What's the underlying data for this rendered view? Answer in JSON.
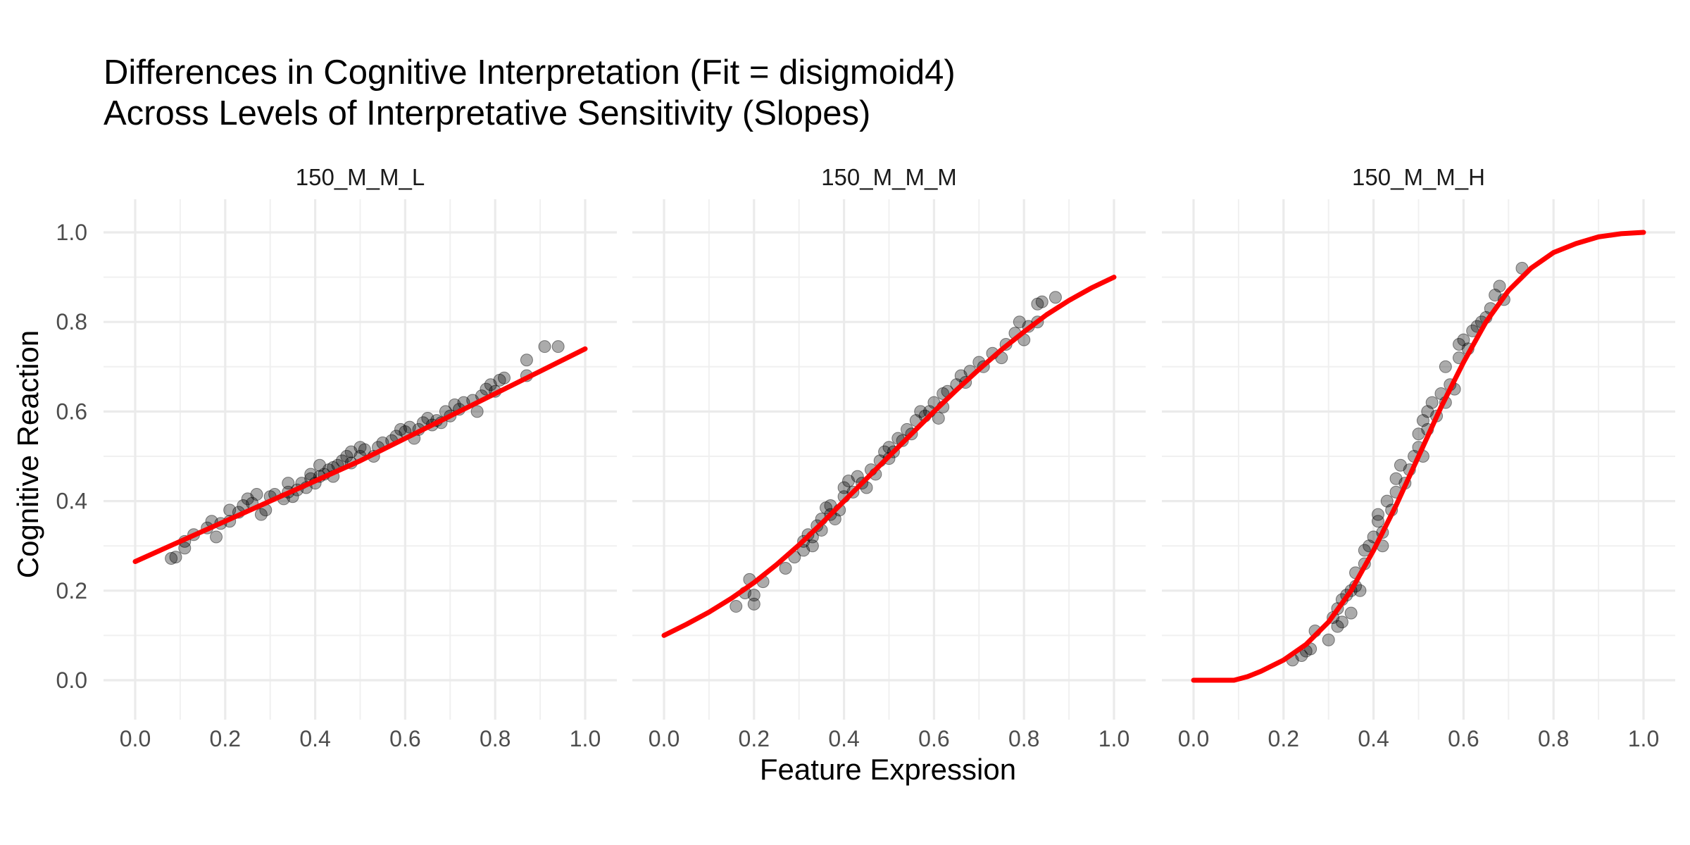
{
  "title_lines": [
    "Differences in Cognitive Interpretation (Fit = disigmoid4)",
    "Across Levels of Interpretative Sensitivity (Slopes)"
  ],
  "chart_data": {
    "type": "scatter",
    "title": "Differences in Cognitive Interpretation (Fit = disigmoid4) Across Levels of Interpretative Sensitivity (Slopes)",
    "xlabel": "Feature Expression",
    "ylabel": "Cognitive Reaction",
    "xlim": [
      0,
      1
    ],
    "ylim": [
      0,
      1
    ],
    "x_ticks": [
      "0.0",
      "0.2",
      "0.4",
      "0.6",
      "0.8",
      "1.0"
    ],
    "y_ticks": [
      "0.0",
      "0.2",
      "0.4",
      "0.6",
      "0.8",
      "1.0"
    ],
    "grid": true,
    "point_color": "#000000",
    "fit_color": "#ff0000",
    "panels": [
      {
        "label": "150_M_M_L",
        "points": [
          [
            0.08,
            0.272
          ],
          [
            0.09,
            0.275
          ],
          [
            0.11,
            0.295
          ],
          [
            0.11,
            0.31
          ],
          [
            0.13,
            0.325
          ],
          [
            0.16,
            0.34
          ],
          [
            0.17,
            0.355
          ],
          [
            0.18,
            0.32
          ],
          [
            0.19,
            0.35
          ],
          [
            0.21,
            0.355
          ],
          [
            0.21,
            0.38
          ],
          [
            0.23,
            0.375
          ],
          [
            0.24,
            0.39
          ],
          [
            0.25,
            0.405
          ],
          [
            0.26,
            0.395
          ],
          [
            0.27,
            0.415
          ],
          [
            0.28,
            0.37
          ],
          [
            0.29,
            0.38
          ],
          [
            0.3,
            0.41
          ],
          [
            0.31,
            0.415
          ],
          [
            0.33,
            0.405
          ],
          [
            0.34,
            0.42
          ],
          [
            0.34,
            0.44
          ],
          [
            0.35,
            0.41
          ],
          [
            0.36,
            0.425
          ],
          [
            0.37,
            0.44
          ],
          [
            0.38,
            0.43
          ],
          [
            0.39,
            0.45
          ],
          [
            0.39,
            0.46
          ],
          [
            0.4,
            0.44
          ],
          [
            0.41,
            0.455
          ],
          [
            0.41,
            0.48
          ],
          [
            0.42,
            0.46
          ],
          [
            0.43,
            0.47
          ],
          [
            0.44,
            0.475
          ],
          [
            0.44,
            0.455
          ],
          [
            0.45,
            0.48
          ],
          [
            0.46,
            0.49
          ],
          [
            0.47,
            0.5
          ],
          [
            0.48,
            0.485
          ],
          [
            0.48,
            0.51
          ],
          [
            0.5,
            0.5
          ],
          [
            0.5,
            0.52
          ],
          [
            0.51,
            0.515
          ],
          [
            0.53,
            0.5
          ],
          [
            0.54,
            0.52
          ],
          [
            0.55,
            0.53
          ],
          [
            0.57,
            0.535
          ],
          [
            0.58,
            0.545
          ],
          [
            0.59,
            0.56
          ],
          [
            0.6,
            0.555
          ],
          [
            0.61,
            0.565
          ],
          [
            0.62,
            0.54
          ],
          [
            0.63,
            0.56
          ],
          [
            0.64,
            0.575
          ],
          [
            0.65,
            0.585
          ],
          [
            0.66,
            0.57
          ],
          [
            0.67,
            0.58
          ],
          [
            0.68,
            0.575
          ],
          [
            0.69,
            0.6
          ],
          [
            0.7,
            0.59
          ],
          [
            0.71,
            0.615
          ],
          [
            0.72,
            0.605
          ],
          [
            0.73,
            0.62
          ],
          [
            0.75,
            0.625
          ],
          [
            0.76,
            0.6
          ],
          [
            0.77,
            0.635
          ],
          [
            0.78,
            0.65
          ],
          [
            0.79,
            0.66
          ],
          [
            0.8,
            0.645
          ],
          [
            0.81,
            0.67
          ],
          [
            0.82,
            0.675
          ],
          [
            0.87,
            0.715
          ],
          [
            0.87,
            0.68
          ],
          [
            0.91,
            0.745
          ],
          [
            0.94,
            0.745
          ]
        ],
        "fit": [
          [
            0,
            0.265
          ],
          [
            0.1,
            0.31
          ],
          [
            0.2,
            0.355
          ],
          [
            0.3,
            0.4
          ],
          [
            0.4,
            0.445
          ],
          [
            0.5,
            0.49
          ],
          [
            0.6,
            0.54
          ],
          [
            0.7,
            0.59
          ],
          [
            0.8,
            0.64
          ],
          [
            0.9,
            0.69
          ],
          [
            1,
            0.74
          ]
        ]
      },
      {
        "label": "150_M_M_M",
        "points": [
          [
            0.16,
            0.165
          ],
          [
            0.18,
            0.195
          ],
          [
            0.19,
            0.225
          ],
          [
            0.2,
            0.17
          ],
          [
            0.2,
            0.19
          ],
          [
            0.22,
            0.22
          ],
          [
            0.27,
            0.25
          ],
          [
            0.29,
            0.275
          ],
          [
            0.31,
            0.29
          ],
          [
            0.31,
            0.31
          ],
          [
            0.32,
            0.325
          ],
          [
            0.33,
            0.32
          ],
          [
            0.33,
            0.3
          ],
          [
            0.34,
            0.345
          ],
          [
            0.35,
            0.36
          ],
          [
            0.35,
            0.335
          ],
          [
            0.36,
            0.385
          ],
          [
            0.37,
            0.37
          ],
          [
            0.37,
            0.39
          ],
          [
            0.38,
            0.36
          ],
          [
            0.39,
            0.38
          ],
          [
            0.4,
            0.41
          ],
          [
            0.4,
            0.43
          ],
          [
            0.41,
            0.445
          ],
          [
            0.42,
            0.42
          ],
          [
            0.43,
            0.455
          ],
          [
            0.44,
            0.44
          ],
          [
            0.45,
            0.43
          ],
          [
            0.46,
            0.47
          ],
          [
            0.47,
            0.46
          ],
          [
            0.48,
            0.49
          ],
          [
            0.49,
            0.51
          ],
          [
            0.5,
            0.495
          ],
          [
            0.5,
            0.52
          ],
          [
            0.51,
            0.51
          ],
          [
            0.52,
            0.54
          ],
          [
            0.53,
            0.535
          ],
          [
            0.54,
            0.56
          ],
          [
            0.55,
            0.55
          ],
          [
            0.56,
            0.58
          ],
          [
            0.57,
            0.6
          ],
          [
            0.58,
            0.59
          ],
          [
            0.59,
            0.6
          ],
          [
            0.6,
            0.62
          ],
          [
            0.61,
            0.585
          ],
          [
            0.62,
            0.61
          ],
          [
            0.62,
            0.64
          ],
          [
            0.63,
            0.645
          ],
          [
            0.65,
            0.66
          ],
          [
            0.66,
            0.68
          ],
          [
            0.67,
            0.665
          ],
          [
            0.68,
            0.69
          ],
          [
            0.7,
            0.71
          ],
          [
            0.71,
            0.7
          ],
          [
            0.73,
            0.73
          ],
          [
            0.75,
            0.72
          ],
          [
            0.76,
            0.75
          ],
          [
            0.78,
            0.775
          ],
          [
            0.79,
            0.8
          ],
          [
            0.8,
            0.76
          ],
          [
            0.81,
            0.79
          ],
          [
            0.83,
            0.8
          ],
          [
            0.83,
            0.84
          ],
          [
            0.84,
            0.845
          ],
          [
            0.87,
            0.855
          ]
        ],
        "fit": [
          [
            0,
            0.1
          ],
          [
            0.05,
            0.125
          ],
          [
            0.1,
            0.152
          ],
          [
            0.15,
            0.183
          ],
          [
            0.2,
            0.218
          ],
          [
            0.25,
            0.258
          ],
          [
            0.3,
            0.302
          ],
          [
            0.35,
            0.35
          ],
          [
            0.4,
            0.4
          ],
          [
            0.45,
            0.45
          ],
          [
            0.5,
            0.5
          ],
          [
            0.55,
            0.55
          ],
          [
            0.6,
            0.6
          ],
          [
            0.65,
            0.648
          ],
          [
            0.7,
            0.694
          ],
          [
            0.75,
            0.738
          ],
          [
            0.8,
            0.778
          ],
          [
            0.85,
            0.816
          ],
          [
            0.9,
            0.848
          ],
          [
            0.95,
            0.876
          ],
          [
            1,
            0.9
          ]
        ]
      },
      {
        "label": "150_M_M_H",
        "points": [
          [
            0.22,
            0.045
          ],
          [
            0.24,
            0.055
          ],
          [
            0.25,
            0.065
          ],
          [
            0.26,
            0.07
          ],
          [
            0.27,
            0.11
          ],
          [
            0.3,
            0.09
          ],
          [
            0.31,
            0.14
          ],
          [
            0.32,
            0.12
          ],
          [
            0.32,
            0.16
          ],
          [
            0.33,
            0.18
          ],
          [
            0.33,
            0.13
          ],
          [
            0.34,
            0.19
          ],
          [
            0.35,
            0.2
          ],
          [
            0.35,
            0.15
          ],
          [
            0.36,
            0.21
          ],
          [
            0.36,
            0.24
          ],
          [
            0.37,
            0.2
          ],
          [
            0.38,
            0.26
          ],
          [
            0.38,
            0.29
          ],
          [
            0.39,
            0.3
          ],
          [
            0.4,
            0.32
          ],
          [
            0.41,
            0.355
          ],
          [
            0.41,
            0.37
          ],
          [
            0.42,
            0.3
          ],
          [
            0.42,
            0.33
          ],
          [
            0.43,
            0.4
          ],
          [
            0.44,
            0.38
          ],
          [
            0.45,
            0.42
          ],
          [
            0.45,
            0.45
          ],
          [
            0.46,
            0.48
          ],
          [
            0.47,
            0.44
          ],
          [
            0.48,
            0.47
          ],
          [
            0.49,
            0.5
          ],
          [
            0.5,
            0.55
          ],
          [
            0.5,
            0.52
          ],
          [
            0.51,
            0.58
          ],
          [
            0.51,
            0.5
          ],
          [
            0.52,
            0.6
          ],
          [
            0.52,
            0.56
          ],
          [
            0.53,
            0.62
          ],
          [
            0.54,
            0.59
          ],
          [
            0.55,
            0.64
          ],
          [
            0.56,
            0.7
          ],
          [
            0.56,
            0.62
          ],
          [
            0.57,
            0.66
          ],
          [
            0.58,
            0.65
          ],
          [
            0.59,
            0.72
          ],
          [
            0.59,
            0.75
          ],
          [
            0.6,
            0.76
          ],
          [
            0.61,
            0.74
          ],
          [
            0.62,
            0.78
          ],
          [
            0.63,
            0.79
          ],
          [
            0.64,
            0.8
          ],
          [
            0.65,
            0.81
          ],
          [
            0.66,
            0.83
          ],
          [
            0.67,
            0.86
          ],
          [
            0.68,
            0.88
          ],
          [
            0.69,
            0.85
          ],
          [
            0.73,
            0.92
          ]
        ],
        "fit": [
          [
            0,
            0
          ],
          [
            0.09,
            0
          ],
          [
            0.12,
            0.008
          ],
          [
            0.15,
            0.02
          ],
          [
            0.2,
            0.045
          ],
          [
            0.25,
            0.08
          ],
          [
            0.3,
            0.13
          ],
          [
            0.35,
            0.2
          ],
          [
            0.4,
            0.29
          ],
          [
            0.45,
            0.39
          ],
          [
            0.5,
            0.5
          ],
          [
            0.55,
            0.61
          ],
          [
            0.6,
            0.71
          ],
          [
            0.65,
            0.8
          ],
          [
            0.7,
            0.87
          ],
          [
            0.75,
            0.92
          ],
          [
            0.8,
            0.955
          ],
          [
            0.85,
            0.975
          ],
          [
            0.9,
            0.99
          ],
          [
            0.95,
            0.997
          ],
          [
            1,
            1
          ]
        ]
      }
    ]
  }
}
